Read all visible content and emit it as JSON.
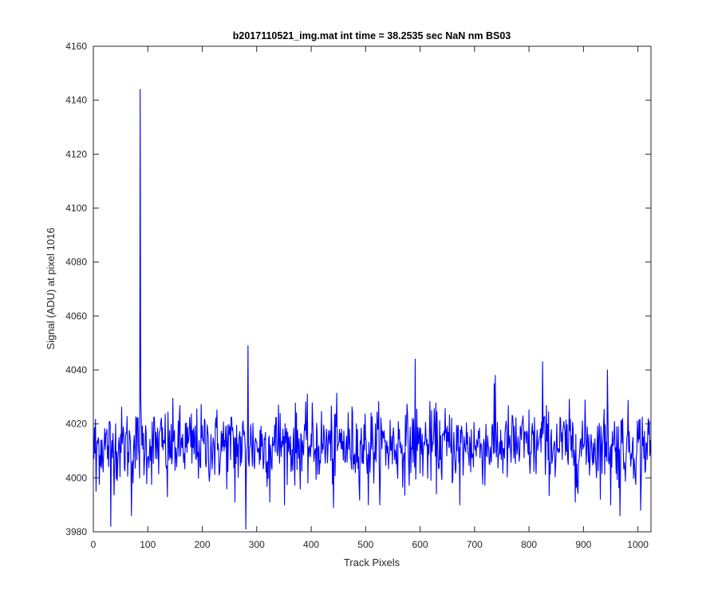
{
  "chart_data": {
    "type": "line",
    "title": "b2017110521_img.mat int time = 38.2535 sec  NaN nm BS03",
    "xlabel": "Track Pixels",
    "ylabel": "Signal (ADU) at pixel 1016",
    "xlim": [
      0,
      1024
    ],
    "ylim": [
      3980,
      4160
    ],
    "xticks": [
      0,
      100,
      200,
      300,
      400,
      500,
      600,
      700,
      800,
      900,
      1000
    ],
    "yticks": [
      3980,
      4000,
      4020,
      4040,
      4060,
      4080,
      4100,
      4120,
      4140,
      4160
    ],
    "grid": false,
    "legend": "none",
    "series": [
      {
        "color": "#0000ff",
        "n_points": 1024,
        "baseline_mean": 4012,
        "noise_sd": 7,
        "notable_points": [
          {
            "x": 1,
            "y": 4007
          },
          {
            "x": 5,
            "y": 3995
          },
          {
            "x": 32,
            "y": 3982
          },
          {
            "x": 70,
            "y": 3986
          },
          {
            "x": 86,
            "y": 4144
          },
          {
            "x": 87,
            "y": 4030
          },
          {
            "x": 136,
            "y": 3993
          },
          {
            "x": 260,
            "y": 3991
          },
          {
            "x": 280,
            "y": 3981
          },
          {
            "x": 284,
            "y": 4049
          },
          {
            "x": 324,
            "y": 3991
          },
          {
            "x": 340,
            "y": 4027
          },
          {
            "x": 441,
            "y": 3989
          },
          {
            "x": 505,
            "y": 3990
          },
          {
            "x": 591,
            "y": 4044
          },
          {
            "x": 673,
            "y": 3990
          },
          {
            "x": 738,
            "y": 4038
          },
          {
            "x": 825,
            "y": 4043
          },
          {
            "x": 885,
            "y": 3991
          },
          {
            "x": 944,
            "y": 4040
          },
          {
            "x": 950,
            "y": 3990
          },
          {
            "x": 967,
            "y": 3986
          },
          {
            "x": 1005,
            "y": 3988
          }
        ]
      }
    ]
  }
}
